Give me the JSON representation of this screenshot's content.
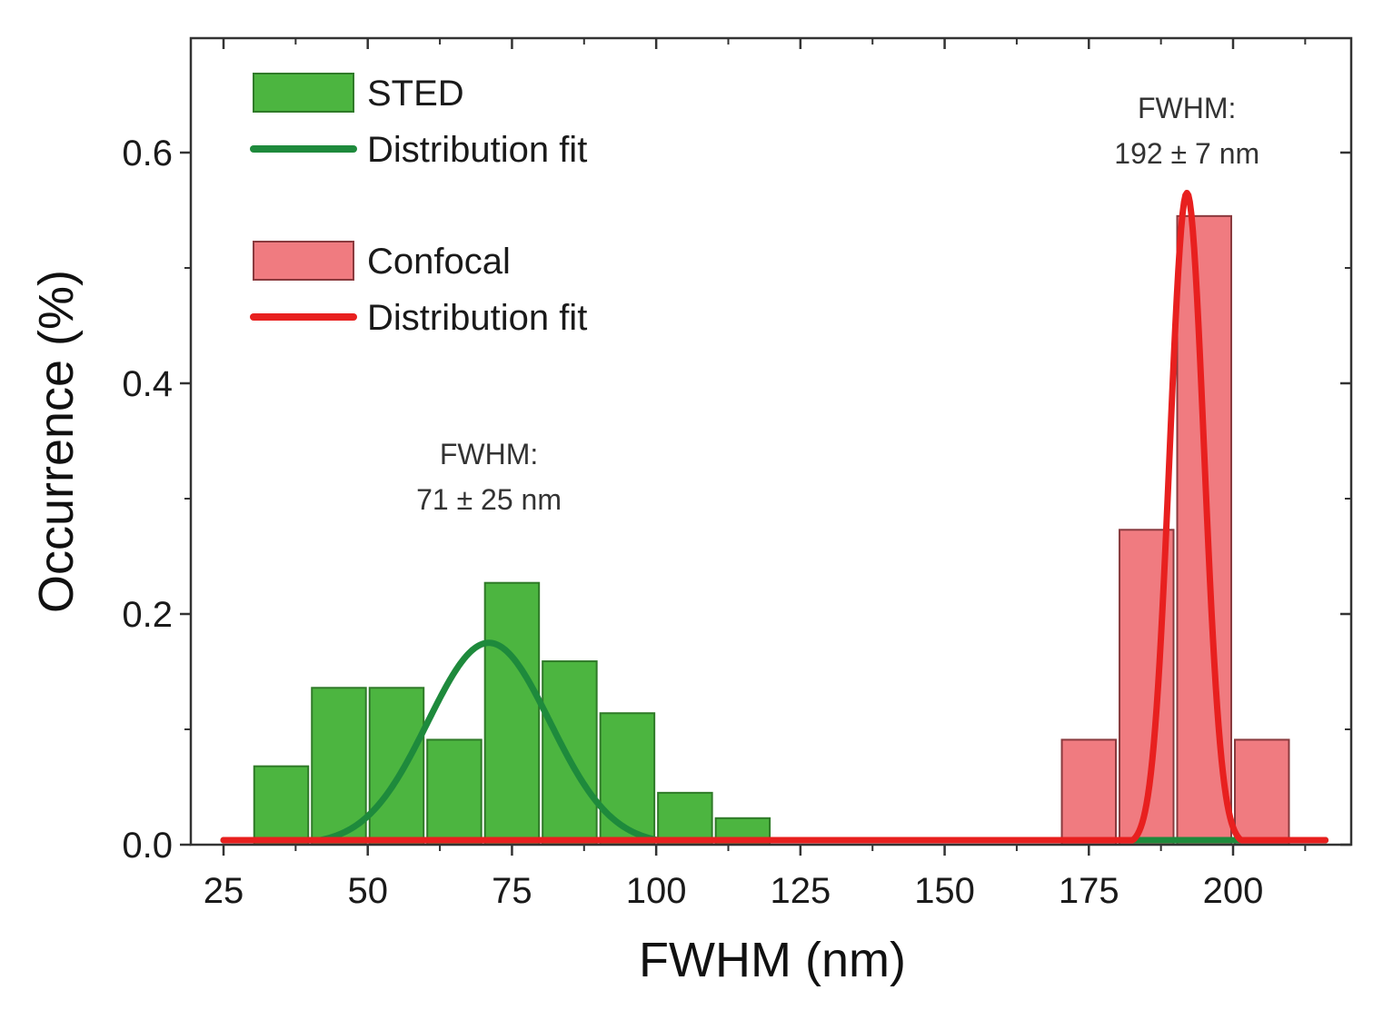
{
  "chart_data": {
    "type": "bar",
    "title": "",
    "xlabel": "FWHM (nm)",
    "ylabel": "Occurrence (%)",
    "xlim": [
      20,
      220
    ],
    "ylim": [
      0,
      0.7
    ],
    "xticks": [
      25,
      50,
      75,
      100,
      125,
      150,
      175,
      200
    ],
    "yticks": [
      0.0,
      0.2,
      0.4,
      0.6
    ],
    "ytick_labels": [
      "0.0",
      "0.2",
      "0.4",
      "0.6"
    ],
    "grid": false,
    "legend_position": "top-left",
    "series": [
      {
        "name": "STED",
        "kind": "histogram",
        "color": "#4cb540",
        "edge_color": "#2f7a28",
        "bin_width": 10,
        "bin_centers": [
          35,
          45,
          55,
          65,
          75,
          85,
          95,
          105,
          115
        ],
        "values": [
          0.068,
          0.136,
          0.136,
          0.091,
          0.227,
          0.159,
          0.114,
          0.045,
          0.023
        ]
      },
      {
        "name": "Distribution fit",
        "kind": "fit",
        "color": "#1e8a3c",
        "fit_for": "STED",
        "center": 71,
        "fwhm": 25,
        "peak": 0.175,
        "x_range": [
          25,
          216
        ]
      },
      {
        "name": "Confocal",
        "kind": "histogram",
        "color": "#f07b80",
        "edge_color": "#8a3a3e",
        "bin_width": 10,
        "bin_centers": [
          175,
          185,
          195,
          205
        ],
        "values": [
          0.091,
          0.273,
          0.545,
          0.091
        ]
      },
      {
        "name": "Distribution fit",
        "kind": "fit",
        "color": "#e8201f",
        "fit_for": "Confocal",
        "center": 192,
        "fwhm": 7,
        "peak": 0.565,
        "x_range": [
          25,
          216
        ]
      }
    ],
    "legend": [
      {
        "label": "STED",
        "type": "patch",
        "color": "#4cb540",
        "edge_color": "#2f7a28"
      },
      {
        "label": "Distribution fit",
        "type": "line",
        "color": "#1e8a3c"
      },
      {
        "label": "Confocal",
        "type": "patch",
        "color": "#f07b80",
        "edge_color": "#8a3a3e"
      },
      {
        "label": "Distribution fit",
        "type": "line",
        "color": "#e8201f"
      }
    ],
    "annotations": [
      {
        "line1": "FWHM:",
        "line2": "71 ± 25 nm",
        "x": 71,
        "y": 0.33
      },
      {
        "line1": "FWHM:",
        "line2": "192 ± 7 nm",
        "x": 192,
        "y": 0.63
      }
    ]
  }
}
